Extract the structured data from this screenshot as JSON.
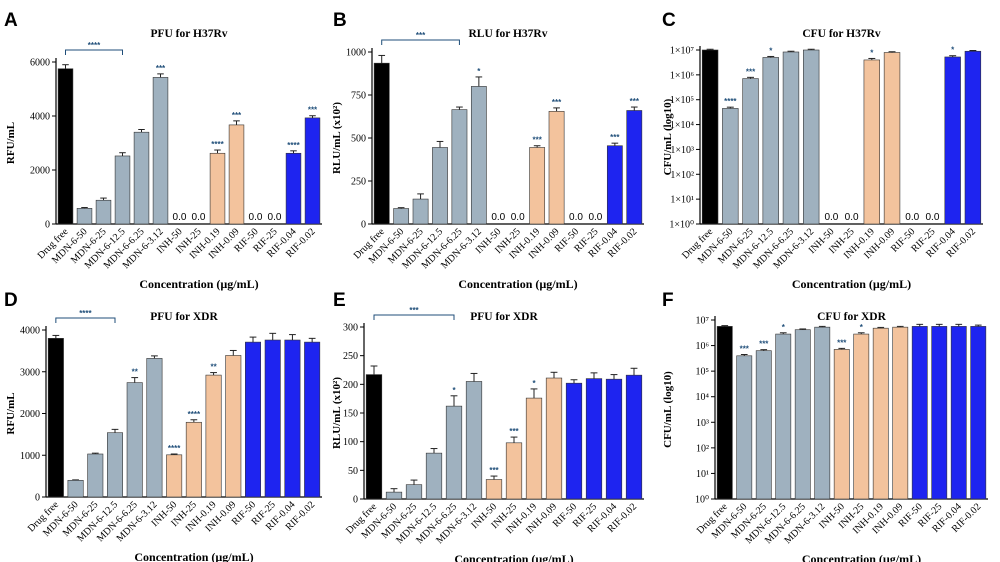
{
  "colors": {
    "black": "#000000",
    "gray": "#9fb1bf",
    "orange": "#f3c39d",
    "blue": "#1e24f0",
    "sig": "#1f4e79"
  },
  "chart_data": [
    {
      "letter": "A",
      "type": "bar",
      "scale": "linear",
      "title": "PFU for H37Rv",
      "ylabel": "RFU/mL",
      "xlabel": "Concentration (µg/mL)",
      "ylim": [
        0,
        6000
      ],
      "yticks": [
        0,
        2000,
        4000,
        6000
      ],
      "ytick_labels": [
        "0",
        "2000",
        "4000",
        "6000"
      ],
      "categories": [
        "Drug free",
        "MDN-6-50",
        "MDN-6-25",
        "MDN-6-12.5",
        "MDN-6-6.25",
        "MDN-6-3.12",
        "INH-50",
        "INH-25",
        "INH-0.19",
        "INH-0.09",
        "RIF-50",
        "RIF-25",
        "RIF-0.04",
        "RIF-0.02"
      ],
      "colors": [
        "black",
        "gray",
        "gray",
        "gray",
        "gray",
        "gray",
        "gray",
        "gray",
        "orange",
        "orange",
        "gray",
        "gray",
        "blue",
        "blue"
      ],
      "values": [
        5750,
        580,
        880,
        2520,
        3400,
        5430,
        0,
        0,
        2620,
        3670,
        0,
        0,
        2620,
        3930
      ],
      "errors": [
        150,
        30,
        80,
        120,
        100,
        130,
        0,
        0,
        120,
        150,
        0,
        0,
        90,
        80
      ],
      "zero_labels": [
        "",
        "",
        "",
        "",
        "",
        "",
        "0.0",
        "0.0",
        "",
        "",
        "0.0",
        "0.0",
        "",
        ""
      ],
      "significance": [
        "",
        "",
        "",
        "",
        "",
        "***",
        "",
        "",
        "****",
        "***",
        "",
        "",
        "****",
        "***"
      ],
      "bracket": {
        "from": 0,
        "to": 3,
        "label": "****"
      }
    },
    {
      "letter": "B",
      "type": "bar",
      "scale": "linear",
      "title": "RLU for H37Rv",
      "ylabel": "RLU/mL (x10²)",
      "xlabel": "Concentration (µg/mL)",
      "ylim": [
        0,
        1000
      ],
      "yticks": [
        0,
        250,
        500,
        750,
        1000
      ],
      "ytick_labels": [
        "0",
        "250",
        "500",
        "750",
        "1000"
      ],
      "categories": [
        "Drug free",
        "MDN-6-50",
        "MDN-6-25",
        "MDN-6-12.5",
        "MDN-6-6.25",
        "MDN-6-3.12",
        "INH-50",
        "INH-25",
        "INH-0.19",
        "INH-0.09",
        "RIF-50",
        "RIF-25",
        "RIF-0.04",
        "RIF-0.02"
      ],
      "colors": [
        "black",
        "gray",
        "gray",
        "gray",
        "gray",
        "gray",
        "gray",
        "gray",
        "orange",
        "orange",
        "gray",
        "gray",
        "blue",
        "blue"
      ],
      "values": [
        935,
        90,
        145,
        445,
        665,
        800,
        0,
        0,
        445,
        655,
        0,
        0,
        455,
        660
      ],
      "errors": [
        45,
        5,
        30,
        35,
        15,
        55,
        0,
        0,
        10,
        20,
        0,
        0,
        15,
        20
      ],
      "zero_labels": [
        "",
        "",
        "",
        "",
        "",
        "",
        "0.0",
        "0.0",
        "",
        "",
        "0.0",
        "0.0",
        "",
        ""
      ],
      "significance": [
        "",
        "",
        "",
        "",
        "",
        "*",
        "",
        "",
        "***",
        "***",
        "",
        "",
        "***",
        "***"
      ],
      "bracket": {
        "from": 0,
        "to": 4,
        "label": "***"
      }
    },
    {
      "letter": "C",
      "type": "bar",
      "scale": "log",
      "title": "CFU for H37Rv",
      "ylabel": "CFU/mL (log10)",
      "xlabel": "Concentration (µg/mL)",
      "ylim": [
        0,
        7
      ],
      "yticks": [
        0,
        1,
        2,
        3,
        4,
        5,
        6,
        7
      ],
      "ytick_labels": [
        "1×10⁰",
        "1×10¹",
        "1×10²",
        "1×10³",
        "1×10⁴",
        "1×10⁵",
        "1×10⁶",
        "1×10⁷"
      ],
      "categories": [
        "Drug free",
        "MDN-6-50",
        "MDN-6-25",
        "MDN-6-12.5",
        "MDN-6-6.25",
        "MDN-6-3.12",
        "INH-50",
        "INH-25",
        "INH-0.19",
        "INH-0.09",
        "RIF-50",
        "RIF-25",
        "RIF-0.04",
        "RIF-0.02"
      ],
      "colors": [
        "black",
        "gray",
        "gray",
        "gray",
        "gray",
        "gray",
        "gray",
        "gray",
        "orange",
        "orange",
        "gray",
        "gray",
        "blue",
        "blue"
      ],
      "values": [
        7.0,
        4.65,
        5.85,
        6.7,
        6.92,
        7.0,
        0,
        0,
        6.6,
        6.9,
        0,
        0,
        6.72,
        6.95
      ],
      "errors": [
        0.03,
        0.05,
        0.05,
        0.04,
        0.03,
        0.03,
        0,
        0,
        0.06,
        0.03,
        0,
        0,
        0.05,
        0.03
      ],
      "zero_labels": [
        "",
        "",
        "",
        "",
        "",
        "",
        "0.0",
        "0.0",
        "",
        "",
        "0.0",
        "0.0",
        "",
        ""
      ],
      "significance": [
        "",
        "****",
        "***",
        "*",
        "",
        "",
        "",
        "",
        "*",
        "",
        "",
        "",
        "*",
        ""
      ],
      "bracket": null
    },
    {
      "letter": "D",
      "type": "bar",
      "scale": "linear",
      "title": "PFU for XDR",
      "ylabel": "RFU/mL",
      "xlabel": "Concentration (µg/mL)",
      "ylim": [
        0,
        4000
      ],
      "yticks": [
        0,
        1000,
        2000,
        3000,
        4000
      ],
      "ytick_labels": [
        "0",
        "1000",
        "2000",
        "3000",
        "4000"
      ],
      "categories": [
        "Drug free",
        "MDN-6-50",
        "MDN-6-25",
        "MDN-6-12.5",
        "MDN-6-6.25",
        "MDN-6-3.12",
        "INH-50",
        "INH-25",
        "INH-0.19",
        "INH-0.09",
        "RIF-50",
        "RIF-25",
        "RIF-0.04",
        "RIF-0.02"
      ],
      "colors": [
        "black",
        "gray",
        "gray",
        "gray",
        "gray",
        "gray",
        "orange",
        "orange",
        "orange",
        "orange",
        "blue",
        "blue",
        "blue",
        "blue"
      ],
      "values": [
        3800,
        400,
        1030,
        1540,
        2740,
        3320,
        1010,
        1790,
        2920,
        3390,
        3710,
        3760,
        3760,
        3710
      ],
      "errors": [
        70,
        10,
        20,
        80,
        120,
        60,
        20,
        60,
        60,
        120,
        120,
        160,
        130,
        90
      ],
      "zero_labels": [
        "",
        "",
        "",
        "",
        "",
        "",
        "",
        "",
        "",
        "",
        "",
        "",
        "",
        ""
      ],
      "significance": [
        "",
        "",
        "",
        "",
        "**",
        "",
        "****",
        "****",
        "**",
        "",
        "",
        "",
        "",
        ""
      ],
      "bracket": {
        "from": 0,
        "to": 3,
        "label": "****"
      }
    },
    {
      "letter": "E",
      "type": "bar",
      "scale": "linear",
      "title": "PFU for XDR",
      "ylabel": "RLU/mL (x10²)",
      "xlabel": "Concentration (µg/mL)",
      "ylim": [
        0,
        300
      ],
      "yticks": [
        0,
        50,
        100,
        150,
        200,
        250,
        300
      ],
      "ytick_labels": [
        "0",
        "50",
        "100",
        "150",
        "200",
        "250",
        "300"
      ],
      "categories": [
        "Drug free",
        "MDN-6-50",
        "MDN-6-25",
        "MDN-6-12.5",
        "MDN-6-6.25",
        "MDN-6-3.12",
        "INH-50",
        "INH-25",
        "INH-0.19",
        "INH-0.09",
        "RIF-50",
        "RIF-25",
        "RIF-0.04",
        "RIF-0.02"
      ],
      "colors": [
        "black",
        "gray",
        "gray",
        "gray",
        "gray",
        "gray",
        "orange",
        "orange",
        "orange",
        "orange",
        "blue",
        "blue",
        "blue",
        "blue"
      ],
      "values": [
        217,
        12,
        25,
        80,
        162,
        205,
        34,
        98,
        176,
        211,
        202,
        210,
        209,
        216
      ],
      "errors": [
        15,
        6,
        8,
        8,
        18,
        14,
        6,
        10,
        16,
        10,
        6,
        10,
        8,
        12
      ],
      "zero_labels": [
        "",
        "",
        "",
        "",
        "",
        "",
        "",
        "",
        "",
        "",
        "",
        "",
        "",
        ""
      ],
      "significance": [
        "",
        "",
        "",
        "",
        "*",
        "",
        "***",
        "***",
        "*",
        "",
        "",
        "",
        "",
        ""
      ],
      "bracket": {
        "from": 0,
        "to": 4,
        "label": "***"
      }
    },
    {
      "letter": "F",
      "type": "bar",
      "scale": "log",
      "title": "CFU for XDR",
      "ylabel": "CFU/mL (log10)",
      "xlabel": "Concentration (µg/mL)",
      "ylim": [
        0,
        7
      ],
      "yticks": [
        0,
        1,
        2,
        3,
        4,
        5,
        6,
        7
      ],
      "ytick_labels": [
        "10⁰",
        "10¹",
        "10²",
        "10³",
        "10⁴",
        "10⁵",
        "10⁶",
        "10⁷"
      ],
      "categories": [
        "Drug free",
        "MDN-6-50",
        "MDN-6-25",
        "MDN-6-12.5",
        "MDN-6-6.25",
        "MDN-6-3.12",
        "INH-50",
        "INH-25",
        "INH-0.19",
        "INH-0.09",
        "RIF-50",
        "RIF-25",
        "RIF-0.04",
        "RIF-0.02"
      ],
      "colors": [
        "black",
        "gray",
        "gray",
        "gray",
        "gray",
        "gray",
        "orange",
        "orange",
        "orange",
        "orange",
        "blue",
        "blue",
        "blue",
        "blue"
      ],
      "values": [
        6.75,
        5.6,
        5.8,
        6.45,
        6.62,
        6.72,
        5.85,
        6.45,
        6.68,
        6.72,
        6.75,
        6.75,
        6.75,
        6.75
      ],
      "errors": [
        0.03,
        0.05,
        0.04,
        0.05,
        0.03,
        0.03,
        0.04,
        0.05,
        0.03,
        0.03,
        0.08,
        0.08,
        0.08,
        0.05
      ],
      "zero_labels": [
        "",
        "",
        "",
        "",
        "",
        "",
        "",
        "",
        "",
        "",
        "",
        "",
        "",
        ""
      ],
      "significance": [
        "",
        "***",
        "***",
        "*",
        "",
        "",
        "***",
        "*",
        "",
        "",
        "",
        "",
        "",
        ""
      ],
      "bracket": null
    }
  ]
}
